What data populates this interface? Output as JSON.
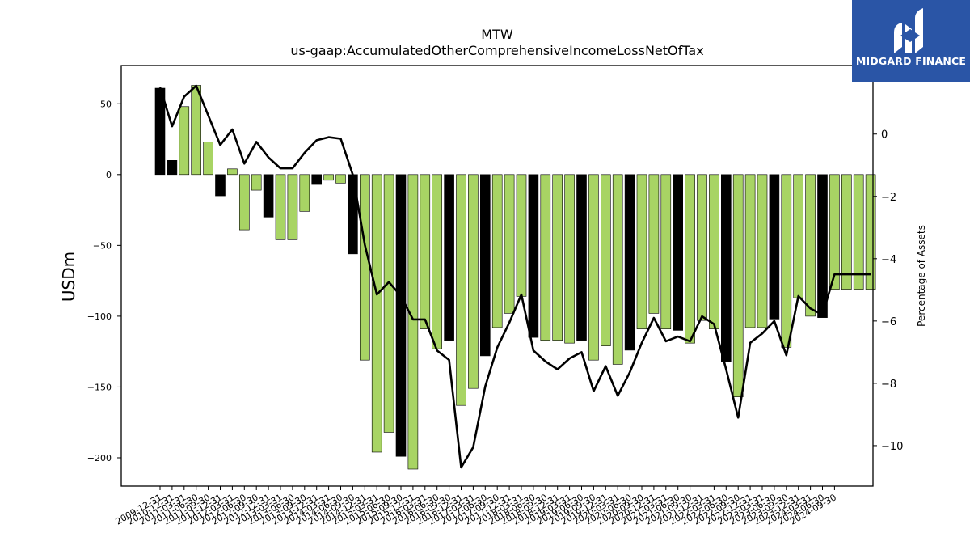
{
  "brand": {
    "name": "MIDGARD FINANCE",
    "bg_color": "#2a55a6",
    "icon": "midgard-logo-icon"
  },
  "chart_data": {
    "type": "bar",
    "title": "MTW",
    "subtitle": "us-gaap:AccumulatedOtherComprehensiveIncomeLossNetOfTax",
    "ylabel": "USDm",
    "y2label": "Percentage of Assets",
    "ylim": [
      -220,
      77
    ],
    "y2lim": [
      -11.3,
      2.2
    ],
    "yticks": [
      -200,
      -150,
      -100,
      -50,
      0,
      50
    ],
    "y2ticks": [
      -10,
      -8,
      -6,
      -4,
      -2,
      0
    ],
    "ytick_labels": [
      "−200",
      "−150",
      "−100",
      "−50",
      "0",
      "50"
    ],
    "y2tick_labels": [
      "−10",
      "−8",
      "−6",
      "−4",
      "−2",
      "0"
    ],
    "colors": {
      "annual": "#000000",
      "quarter": "#a8d464",
      "line": "#000000"
    },
    "categories": [
      "2009-12-31",
      "2010-03-31",
      "2010-06-30",
      "2010-09-30",
      "2010-12-31",
      "2011-03-31",
      "2011-06-30",
      "2011-09-30",
      "2011-12-31",
      "2012-03-31",
      "2012-06-30",
      "2012-09-30",
      "2012-12-31",
      "2013-03-31",
      "2013-06-30",
      "2013-09-30",
      "2013-12-31",
      "2014-03-31",
      "2014-06-30",
      "2014-09-30",
      "2014-12-31",
      "2015-03-31",
      "2015-06-30",
      "2015-09-30",
      "2015-12-31",
      "2016-03-31",
      "2016-06-30",
      "2016-09-30",
      "2016-12-31",
      "2017-03-31",
      "2017-06-30",
      "2017-09-30",
      "2017-12-31",
      "2018-03-31",
      "2018-06-30",
      "2018-09-30",
      "2018-12-31",
      "2019-03-31",
      "2019-06-30",
      "2019-09-30",
      "2019-12-31",
      "2020-03-31",
      "2020-06-30",
      "2020-09-30",
      "2020-12-31",
      "2021-03-31",
      "2021-06-30",
      "2021-09-30",
      "2021-12-31",
      "2022-03-31",
      "2022-06-30",
      "2022-09-30",
      "2022-12-31",
      "2023-03-31",
      "2023-06-30",
      "2023-09-30",
      "2023-12-31",
      "2024-03-31",
      "2024-06-30",
      "2024-09-30"
    ],
    "xtick_labels": [
      "2009-12-31",
      "2010-12-31",
      "2011-03-31",
      "2011-06-30",
      "2011-09-30",
      "2011-12-31",
      "2012-03-31",
      "2012-06-30",
      "2012-09-30",
      "2012-12-31",
      "2013-03-31",
      "2013-06-30",
      "2013-09-30",
      "2013-12-31",
      "2014-03-31",
      "2014-06-30",
      "2014-09-30",
      "2014-12-31",
      "2015-03-31",
      "2015-06-30",
      "2015-09-30",
      "2015-12-31",
      "2016-03-31",
      "2016-06-30",
      "2016-09-30",
      "2016-12-31",
      "2017-03-31",
      "2017-06-30",
      "2017-09-30",
      "2017-12-31",
      "2018-03-31",
      "2018-06-30",
      "2018-09-30",
      "2018-12-31",
      "2019-03-31",
      "2019-06-30",
      "2019-09-30",
      "2019-12-31",
      "2020-03-31",
      "2020-06-30",
      "2020-09-30",
      "2020-12-31",
      "2021-03-31",
      "2021-06-30",
      "2021-09-30",
      "2021-12-31",
      "2022-03-31",
      "2022-06-30",
      "2022-09-30",
      "2022-12-31",
      "2023-03-31",
      "2023-06-30",
      "2023-09-30",
      "2023-12-31",
      "2024-03-31",
      "2024-06-30",
      "2024-09-30"
    ],
    "bar_kind": [
      "annual",
      "annual",
      "quarter",
      "quarter",
      "quarter",
      "annual",
      "quarter",
      "quarter",
      "quarter",
      "annual",
      "quarter",
      "quarter",
      "quarter",
      "annual",
      "quarter",
      "quarter",
      "annual",
      "quarter",
      "quarter",
      "quarter",
      "annual",
      "quarter",
      "quarter",
      "quarter",
      "annual",
      "quarter",
      "quarter",
      "annual",
      "quarter",
      "quarter",
      "quarter",
      "annual",
      "quarter",
      "quarter",
      "quarter",
      "annual",
      "quarter",
      "quarter",
      "quarter",
      "annual",
      "quarter",
      "quarter",
      "quarter",
      "annual",
      "quarter",
      "quarter",
      "quarter",
      "annual",
      "quarter",
      "quarter",
      "quarter",
      "annual",
      "quarter",
      "quarter",
      "quarter",
      "annual",
      "quarter",
      "quarter",
      "quarter",
      "quarter"
    ],
    "series": [
      {
        "values": [
          61,
          10,
          48,
          63,
          23,
          -15,
          4,
          -39,
          -11,
          -30,
          -46,
          -46,
          -26,
          -7,
          -4,
          -6,
          -56,
          -131,
          -196,
          -182,
          -199,
          -208,
          -109,
          -123,
          -117,
          -163,
          -151,
          -128,
          -108,
          -98,
          -86,
          -115,
          -117,
          -117,
          -119,
          -117,
          -131,
          -121,
          -134,
          -124,
          -109,
          -98,
          -109,
          -110,
          -119,
          -103,
          -109,
          -132,
          -157,
          -108,
          -108,
          -102,
          -122,
          -87,
          -100,
          -101,
          -81,
          -81,
          -81,
          -81
        ]
      },
      {
        "type": "line",
        "axis": "right",
        "values": [
          1.5,
          0.25,
          1.2,
          1.55,
          0.6,
          -0.35,
          0.15,
          -0.95,
          -0.25,
          -0.75,
          -1.1,
          -1.1,
          -0.6,
          -0.2,
          -0.1,
          -0.15,
          -1.3,
          -3.55,
          -5.15,
          -4.75,
          -5.2,
          -5.95,
          -5.95,
          -6.95,
          -7.25,
          -10.7,
          -10.05,
          -8.1,
          -6.85,
          -6.05,
          -5.15,
          -6.95,
          -7.3,
          -7.55,
          -7.2,
          -7.0,
          -8.25,
          -7.45,
          -8.4,
          -7.65,
          -6.7,
          -5.9,
          -6.65,
          -6.5,
          -6.65,
          -5.85,
          -6.1,
          -7.55,
          -9.1,
          -6.7,
          -6.4,
          -6.0,
          -7.1,
          -5.2,
          -5.6,
          -5.8,
          -4.5,
          -4.5,
          -4.5,
          -4.5
        ]
      }
    ]
  }
}
